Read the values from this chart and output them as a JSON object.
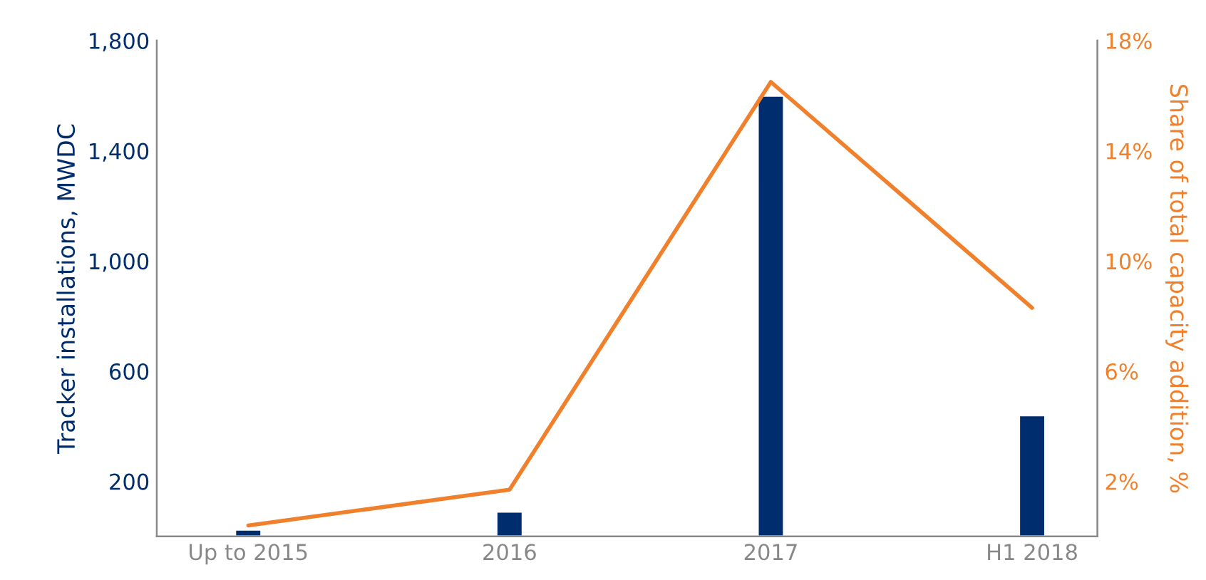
{
  "chart_data": {
    "type": "bar",
    "categories": [
      "Up to 2015",
      "2016",
      "2017",
      "H1 2018"
    ],
    "ylabel": "Tracker installations, MWDC",
    "y2label": "Share of total capacity addition, %",
    "series": [
      {
        "color": "#002d6e",
        "values": [
          25,
          90,
          1600,
          440
        ]
      },
      {
        "type": "line",
        "axis": "y2",
        "color": "#f0802c",
        "values": [
          0.4,
          1.7,
          16.5,
          8.3
        ]
      }
    ],
    "ylim": [
      0,
      1800
    ],
    "yticks": [
      {
        "value": 200,
        "label": "200"
      },
      {
        "value": 600,
        "label": "600"
      },
      {
        "value": 1000,
        "label": "1,000"
      },
      {
        "value": 1400,
        "label": "1,400"
      },
      {
        "value": 1800,
        "label": "1,800"
      }
    ],
    "y2lim": [
      0,
      18
    ],
    "y2ticks": [
      {
        "value": 2,
        "label": "2%"
      },
      {
        "value": 6,
        "label": "6%"
      },
      {
        "value": 10,
        "label": "10%"
      },
      {
        "value": 14,
        "label": "14%"
      },
      {
        "value": 18,
        "label": "18%"
      }
    ],
    "grid": false,
    "legend": false,
    "line_style": "solid",
    "marker": "none"
  }
}
